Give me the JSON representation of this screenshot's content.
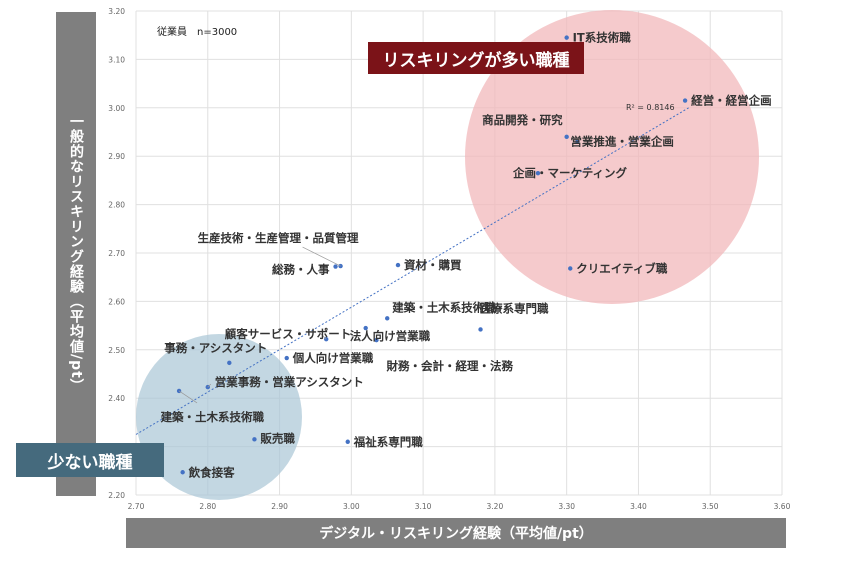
{
  "chart_data": {
    "type": "scatter",
    "xlabel": "デジタル・リスキリング経験（平均値/pt）",
    "ylabel": "一般的なリスキリング経験（平均値/pt）",
    "xlim": [
      2.7,
      3.6
    ],
    "ylim": [
      2.2,
      3.2
    ],
    "xticks": [
      "2.70",
      "2.80",
      "2.90",
      "3.00",
      "3.10",
      "3.20",
      "3.30",
      "3.40",
      "3.50",
      "3.60"
    ],
    "yticks": [
      "2.20",
      "2.30",
      "2.40",
      "2.50",
      "2.60",
      "2.70",
      "2.80",
      "2.90",
      "3.00",
      "3.10",
      "3.20"
    ],
    "sample_note": "従業員　n=3000",
    "r2_label": "R² = 0.8146",
    "trendline": {
      "x": [
        2.7,
        3.47
      ],
      "y": [
        2.325,
        3.0
      ]
    },
    "series_color": "#4472c4",
    "points": [
      {
        "label": "IT系技術職",
        "x": 3.3,
        "y": 3.145
      },
      {
        "label": "経営・経営企画",
        "x": 3.465,
        "y": 3.015
      },
      {
        "label": "商品開発・研究",
        "x": 3.3,
        "y": 2.94
      },
      {
        "label": "営業推進・営業企画",
        "x": 3.315,
        "y": 2.93
      },
      {
        "label": "企画・マーケティング",
        "x": 3.26,
        "y": 2.865
      },
      {
        "label": "クリエイティブ職",
        "x": 3.305,
        "y": 2.668
      },
      {
        "label": "生産技術・生産管理・品質管理",
        "x": 2.985,
        "y": 2.673
      },
      {
        "label": "総務・人事",
        "x": 2.978,
        "y": 2.672
      },
      {
        "label": "資材・購買",
        "x": 3.065,
        "y": 2.675
      },
      {
        "label": "建築・土木系技術職",
        "x": 3.05,
        "y": 2.565
      },
      {
        "label": "医療系専門職",
        "x": 3.18,
        "y": 2.542
      },
      {
        "label": "顧客サービス・サポート",
        "x": 2.965,
        "y": 2.522
      },
      {
        "label": "法人向け営業職",
        "x": 3.02,
        "y": 2.545
      },
      {
        "label": "財務・会計・経理・法務",
        "x": 3.035,
        "y": 2.52
      },
      {
        "label": "事務・アシスタント",
        "x": 2.83,
        "y": 2.473
      },
      {
        "label": "個人向け営業職",
        "x": 2.91,
        "y": 2.483
      },
      {
        "label": "営業事務・営業アシスタント",
        "x": 2.8,
        "y": 2.423
      },
      {
        "label": "建築・土木系技術職",
        "x": 2.76,
        "y": 2.415
      },
      {
        "label": "販売職",
        "x": 2.865,
        "y": 2.315
      },
      {
        "label": "福祉系専門職",
        "x": 2.995,
        "y": 2.31
      },
      {
        "label": "飲食接客",
        "x": 2.765,
        "y": 2.247
      }
    ],
    "highlight_high": "リスキリングが多い職種",
    "highlight_low": "少ない職種"
  }
}
